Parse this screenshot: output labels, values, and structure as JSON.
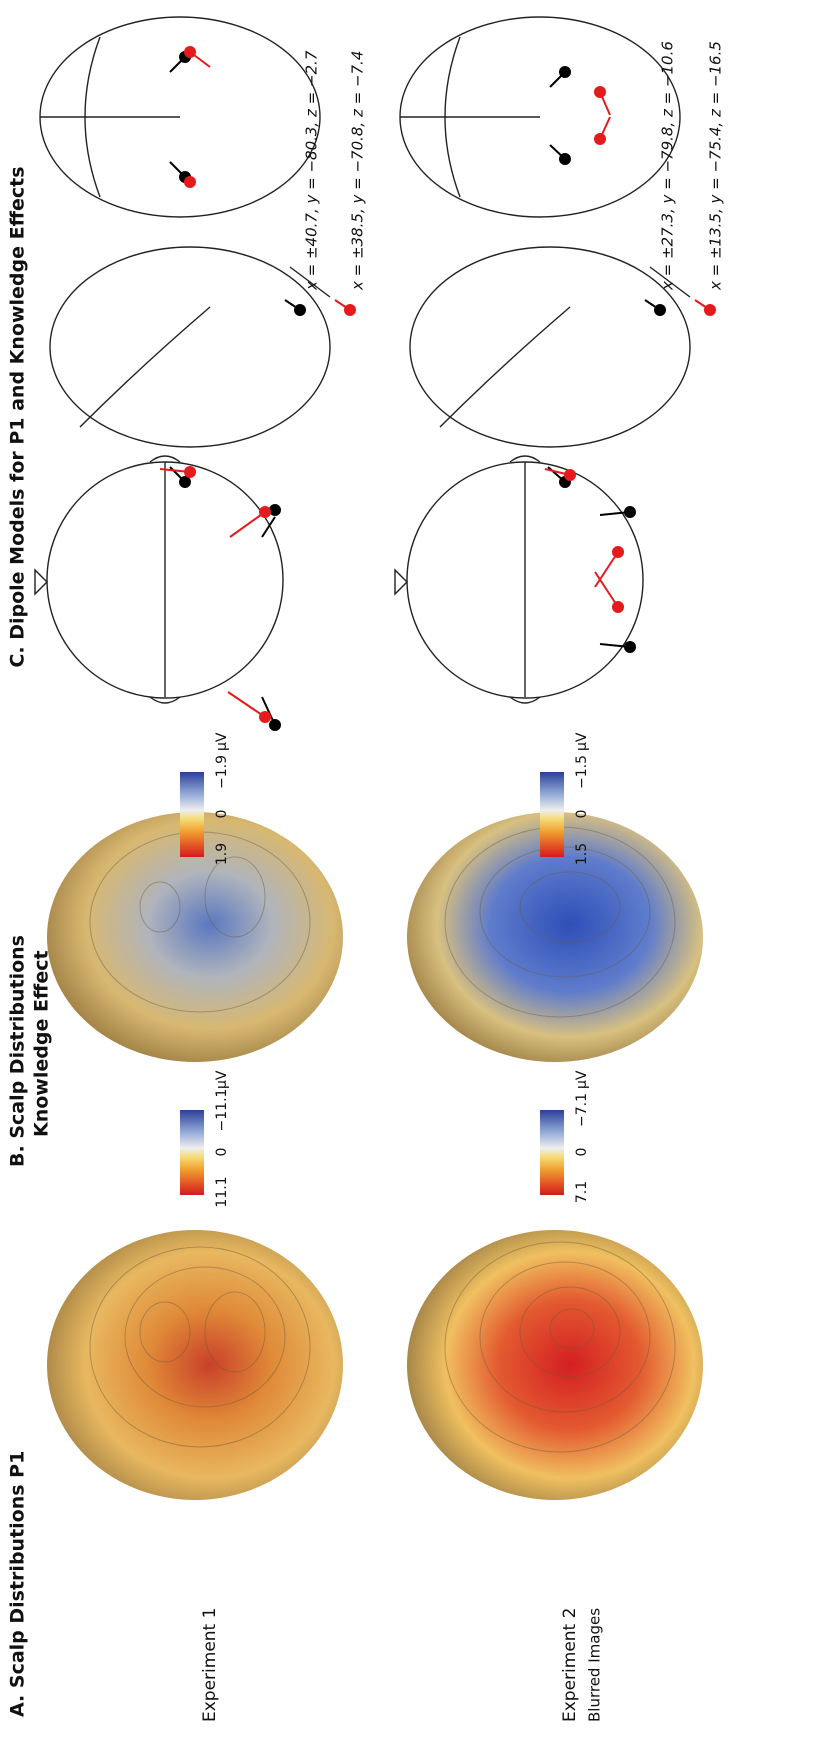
{
  "panels": {
    "a": {
      "title": "A. Scalp Distributions P1"
    },
    "b": {
      "title": "B. Scalp Distributions",
      "subtitle": "Knowledge Effect"
    },
    "c": {
      "title": "C. Dipole Models for P1 and Knowledge Effects"
    }
  },
  "rows": [
    {
      "label": "Experiment 1",
      "sublabel": null
    },
    {
      "label": "Experiment 2",
      "sublabel": "Blurred Images"
    }
  ],
  "colorbars": {
    "a": [
      {
        "max": "11.1",
        "mid": "0",
        "min": "−11.1",
        "unit": "μV"
      },
      {
        "max": "7.1",
        "mid": "0",
        "min": "−7.1",
        "unit": "μV"
      }
    ],
    "b": [
      {
        "max": "1.9",
        "mid": "0",
        "min": "−1.9",
        "unit": "μV"
      },
      {
        "max": "1.5",
        "mid": "0",
        "min": "−1.5",
        "unit": "μV"
      }
    ]
  },
  "dipoles": [
    {
      "p1": "x = ±40.7, y = −80.3, z = −2.7",
      "knowledge": "x = ±38.5, y = −70.8, z = −7.4"
    },
    {
      "p1": "x = ±27.3, y = −79.8, z = −10.6",
      "knowledge": "x = ±13.5, y = −75.4, z = −16.5"
    }
  ]
}
